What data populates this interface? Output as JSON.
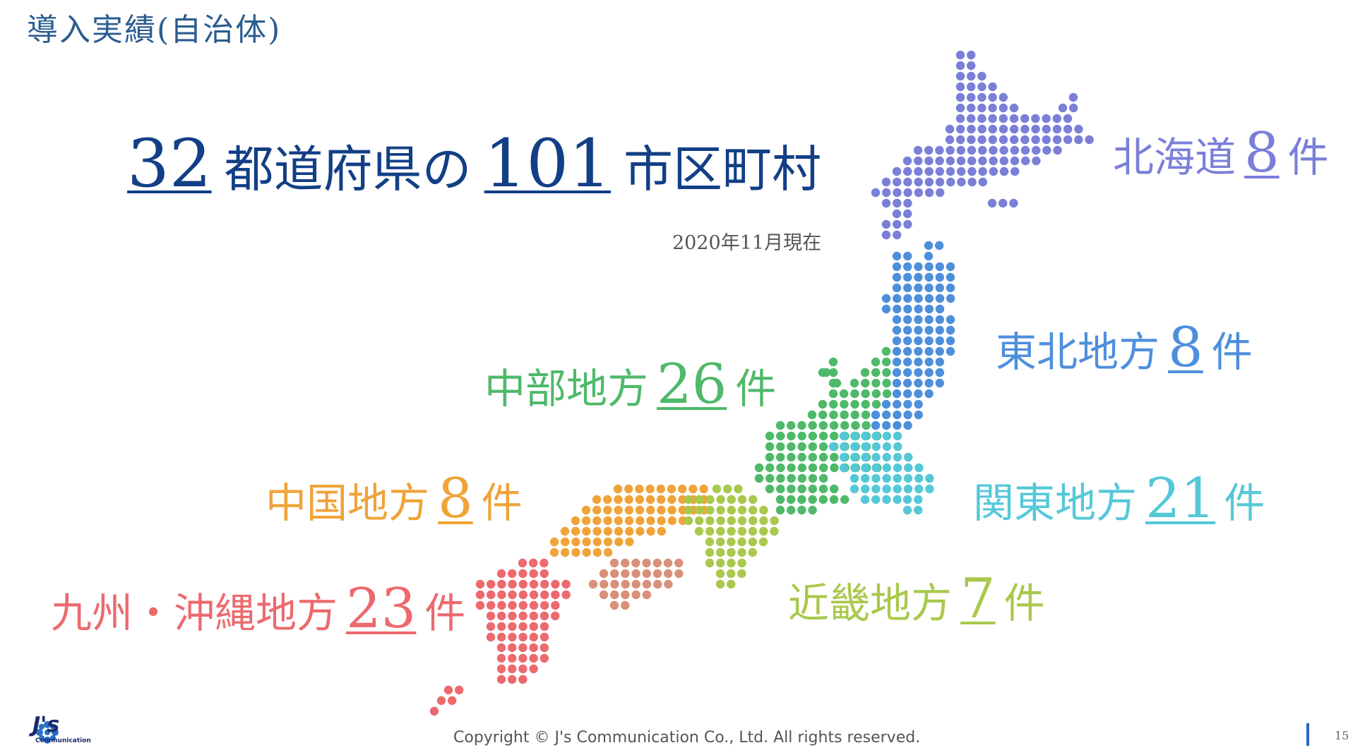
{
  "page_title": "導入実績(自治体)",
  "headline": {
    "prefecture_count": "32",
    "prefecture_label": "都道府県の",
    "municipality_count": "101",
    "municipality_label": "市区町村"
  },
  "as_of": "2020年11月現在",
  "regions": [
    {
      "id": "hokkaido",
      "label": "北海道",
      "count": "8",
      "unit": "件",
      "color": "#7a7fd8"
    },
    {
      "id": "tohoku",
      "label": "東北地方",
      "count": "8",
      "unit": "件",
      "color": "#4e8fdc"
    },
    {
      "id": "chubu",
      "label": "中部地方",
      "count": "26",
      "unit": "件",
      "color": "#4fb96a"
    },
    {
      "id": "kanto",
      "label": "関東地方",
      "count": "21",
      "unit": "件",
      "color": "#55c8d8"
    },
    {
      "id": "chugoku",
      "label": "中国地方",
      "count": "8",
      "unit": "件",
      "color": "#f0a338"
    },
    {
      "id": "kinki",
      "label": "近畿地方",
      "count": "7",
      "unit": "件",
      "color": "#a9c94c"
    },
    {
      "id": "kyushu",
      "label": "九州・沖縄地方",
      "count": "23",
      "unit": "件",
      "color": "#ec6a6e"
    }
  ],
  "shikoku_color": "#d9907a",
  "footer": {
    "copyright": "Copyright © J's Communication Co., Ltd. All rights reserved.",
    "logo_text": "J's",
    "logo_sub": "Communication",
    "page_number": "15"
  }
}
